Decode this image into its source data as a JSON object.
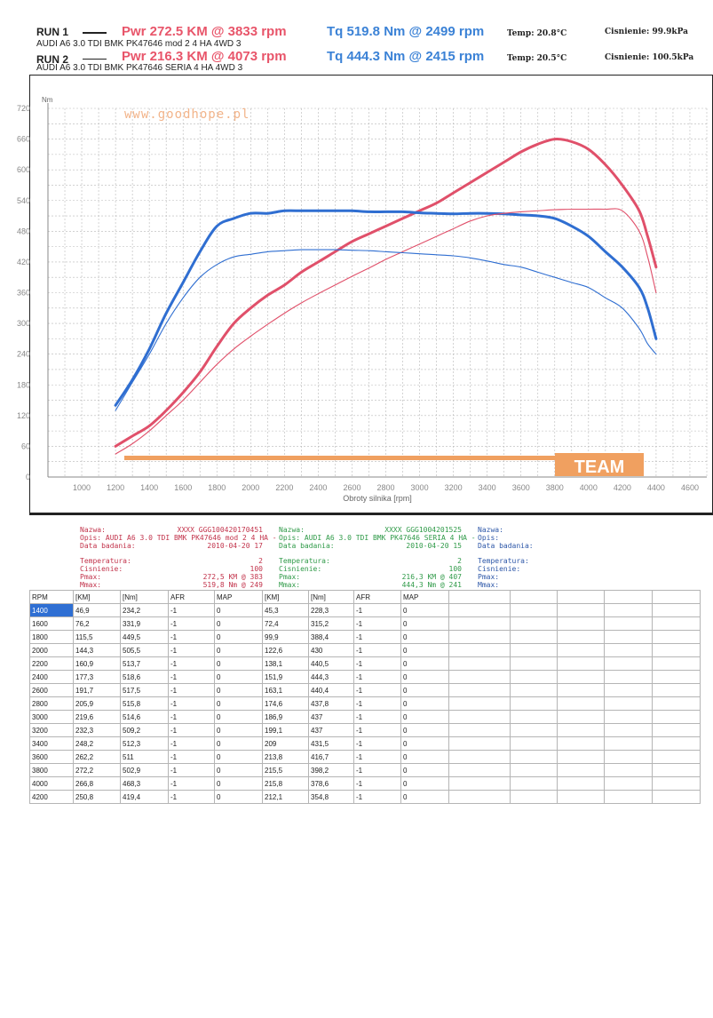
{
  "header": {
    "run1": {
      "label": "RUN 1",
      "description": "AUDI A6 3.0 TDI BMK PK47646 mod 2 4 HA 4WD 3",
      "pwr": "Pwr  272.5 KM @ 3833 rpm",
      "tq": "Tq 519.8 Nm @ 2499 rpm",
      "temp": "Temp: 20.8°C",
      "pressure": "Cisnienie: 99.9kPa"
    },
    "run2": {
      "label": "RUN 2",
      "description": "AUDI A6 3.0 TDI BMK PK47646 SERIA 4 HA 4WD 3",
      "pwr": "Pwr  216.3 KM @ 4073 rpm",
      "tq": "Tq 444.3 Nm @ 2415 rpm",
      "temp": "Temp: 20.5°C",
      "pressure": "Cisnienie: 100.5kPa"
    }
  },
  "chart_data": {
    "type": "line",
    "watermark": "www.goodhope.pl",
    "team_label": "TEAM",
    "ylabel": "Nm",
    "xlabel": "Obroty silnika [rpm]",
    "xlim": [
      800,
      4700
    ],
    "ylim": [
      0,
      720
    ],
    "xticks": [
      1000,
      1200,
      1400,
      1600,
      1800,
      2000,
      2200,
      2400,
      2600,
      2800,
      3000,
      3200,
      3400,
      3600,
      3800,
      4000,
      4200,
      4400,
      4600
    ],
    "yticks": [
      0,
      60,
      120,
      180,
      240,
      300,
      360,
      420,
      480,
      540,
      600,
      660,
      720
    ],
    "grid": true,
    "colors": {
      "power": "#e0506a",
      "torque": "#2f6ed1"
    },
    "x": [
      1200,
      1300,
      1400,
      1500,
      1600,
      1700,
      1800,
      1900,
      2000,
      2100,
      2200,
      2300,
      2400,
      2500,
      2600,
      2700,
      2800,
      2900,
      3000,
      3100,
      3200,
      3300,
      3400,
      3500,
      3600,
      3700,
      3800,
      3900,
      4000,
      4100,
      4200,
      4300,
      4350,
      4400
    ],
    "series": [
      {
        "name": "RUN 1",
        "quantity": "power",
        "run": 1,
        "values": [
          60,
          80,
          100,
          130,
          165,
          205,
          255,
          300,
          330,
          355,
          375,
          400,
          420,
          440,
          460,
          475,
          490,
          505,
          520,
          535,
          555,
          575,
          595,
          615,
          635,
          650,
          660,
          655,
          640,
          610,
          570,
          520,
          470,
          410
        ]
      },
      {
        "name": "RUN 1",
        "quantity": "torque",
        "run": 1,
        "values": [
          140,
          190,
          250,
          320,
          380,
          440,
          490,
          505,
          515,
          515,
          520,
          520,
          520,
          520,
          520,
          518,
          518,
          518,
          516,
          515,
          514,
          515,
          515,
          514,
          512,
          510,
          505,
          490,
          470,
          440,
          410,
          370,
          330,
          270
        ]
      },
      {
        "name": "RUN 2",
        "quantity": "power",
        "run": 2,
        "values": [
          45,
          65,
          90,
          120,
          150,
          185,
          220,
          250,
          275,
          298,
          320,
          340,
          358,
          375,
          392,
          408,
          425,
          440,
          455,
          470,
          485,
          500,
          510,
          515,
          518,
          520,
          522,
          523,
          523,
          523,
          520,
          480,
          430,
          360
        ]
      },
      {
        "name": "RUN 2",
        "quantity": "torque",
        "run": 2,
        "values": [
          130,
          185,
          240,
          300,
          350,
          390,
          415,
          430,
          435,
          440,
          442,
          444,
          444,
          444,
          443,
          442,
          440,
          438,
          436,
          434,
          432,
          428,
          422,
          415,
          410,
          400,
          390,
          380,
          370,
          350,
          330,
          290,
          260,
          240
        ]
      }
    ]
  },
  "info": {
    "run1": {
      "nazwa_label": "Nazwa:",
      "nazwa_value": "XXXX  GGG100420170451",
      "opis_label": "Opis:",
      "opis_value": "AUDI A6 3.0 TDI BMK PK47646 mod 2 4 HA -",
      "data_label": "Data badania:",
      "data_value": "2010-04-20 17",
      "temp_label": "Temperatura:",
      "temp_value": "2",
      "cis_label": "Cisnienie:",
      "cis_value": "100",
      "pmax_label": "Pmax:",
      "pmax_value": "272,5 KM @ 383",
      "mmax_label": "Mmax:",
      "mmax_value": "519,8 Nm @ 249"
    },
    "run2": {
      "nazwa_label": "Nazwa:",
      "nazwa_value": "XXXX  GGG1004201525",
      "opis_label": "Opis:",
      "opis_value": "AUDI A6 3.0 TDI BMK PK47646 SERIA 4 HA -",
      "data_label": "Data badania:",
      "data_value": "2010-04-20 15",
      "temp_label": "Temperatura:",
      "temp_value": "2",
      "cis_label": "Cisnienie:",
      "cis_value": "100",
      "pmax_label": "Pmax:",
      "pmax_value": "216,3 KM @ 407",
      "mmax_label": "Mmax:",
      "mmax_value": "444,3 Nm @ 241"
    },
    "run3": {
      "nazwa_label": "Nazwa:",
      "opis_label": "Opis:",
      "data_label": "Data badania:",
      "temp_label": "Temperatura:",
      "cis_label": "Cisnienie:",
      "pmax_label": "Pmax:",
      "mmax_label": "Mmax:"
    }
  },
  "table": {
    "headers": [
      "RPM",
      "[KM]",
      "[Nm]",
      "AFR",
      "MAP",
      "[KM]",
      "[Nm]",
      "AFR",
      "MAP"
    ],
    "rows": [
      [
        "1400",
        "46,9",
        "234,2",
        "-1",
        "0",
        "45,3",
        "228,3",
        "-1",
        "0"
      ],
      [
        "1600",
        "76,2",
        "331,9",
        "-1",
        "0",
        "72,4",
        "315,2",
        "-1",
        "0"
      ],
      [
        "1800",
        "115,5",
        "449,5",
        "-1",
        "0",
        "99,9",
        "388,4",
        "-1",
        "0"
      ],
      [
        "2000",
        "144,3",
        "505,5",
        "-1",
        "0",
        "122,6",
        "430",
        "-1",
        "0"
      ],
      [
        "2200",
        "160,9",
        "513,7",
        "-1",
        "0",
        "138,1",
        "440,5",
        "-1",
        "0"
      ],
      [
        "2400",
        "177,3",
        "518,6",
        "-1",
        "0",
        "151,9",
        "444,3",
        "-1",
        "0"
      ],
      [
        "2600",
        "191,7",
        "517,5",
        "-1",
        "0",
        "163,1",
        "440,4",
        "-1",
        "0"
      ],
      [
        "2800",
        "205,9",
        "515,8",
        "-1",
        "0",
        "174,6",
        "437,8",
        "-1",
        "0"
      ],
      [
        "3000",
        "219,6",
        "514,6",
        "-1",
        "0",
        "186,9",
        "437",
        "-1",
        "0"
      ],
      [
        "3200",
        "232,3",
        "509,2",
        "-1",
        "0",
        "199,1",
        "437",
        "-1",
        "0"
      ],
      [
        "3400",
        "248,2",
        "512,3",
        "-1",
        "0",
        "209",
        "431,5",
        "-1",
        "0"
      ],
      [
        "3600",
        "262,2",
        "511",
        "-1",
        "0",
        "213,8",
        "416,7",
        "-1",
        "0"
      ],
      [
        "3800",
        "272,2",
        "502,9",
        "-1",
        "0",
        "215,5",
        "398,2",
        "-1",
        "0"
      ],
      [
        "4000",
        "266,8",
        "468,3",
        "-1",
        "0",
        "215,8",
        "378,6",
        "-1",
        "0"
      ],
      [
        "4200",
        "250,8",
        "419,4",
        "-1",
        "0",
        "212,1",
        "354,8",
        "-1",
        "0"
      ]
    ]
  }
}
